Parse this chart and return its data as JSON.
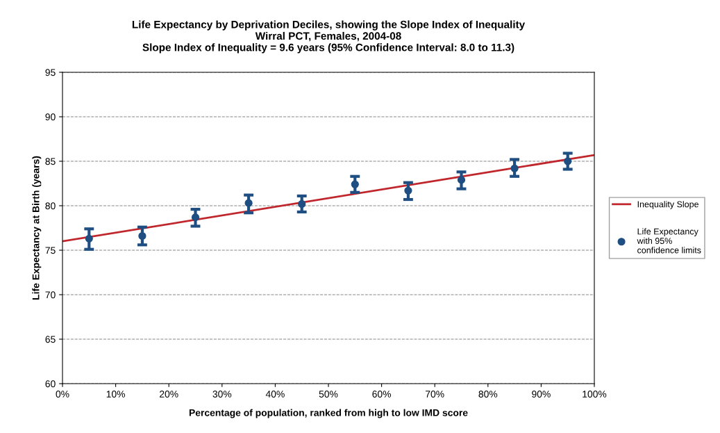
{
  "chart_data": {
    "type": "scatter",
    "title": "Life Expectancy by Deprivation Deciles, showing the Slope Index of Inequality\nWirral PCT, Females, 2004-08\nSlope Index of Inequality = 9.6 years (95% Confidence Interval: 8.0 to 11.3)",
    "xlabel": "Percentage of population, ranked from high to low IMD score",
    "ylabel": "Life Expectancy at Birth (years)",
    "series": [
      {
        "type": "line",
        "name": "Inequality Slope",
        "color": "#c0272d",
        "x": [
          0,
          100
        ],
        "values": [
          76.0,
          85.7
        ],
        "marker": "none"
      },
      {
        "name": "Life Expectancy\nwith 95%\nconfidence limits",
        "color": "#1f4e82",
        "marker": "circle",
        "x": [
          5,
          15,
          25,
          35,
          45,
          55,
          65,
          75,
          85,
          95
        ],
        "values": [
          76.3,
          76.6,
          78.7,
          80.3,
          80.2,
          82.4,
          81.7,
          82.9,
          84.2,
          85.0
        ],
        "errors": [
          [
            75.1,
            77.4
          ],
          [
            75.6,
            77.6
          ],
          [
            77.7,
            79.6
          ],
          [
            79.2,
            81.2
          ],
          [
            79.3,
            81.1
          ],
          [
            81.5,
            83.3
          ],
          [
            80.7,
            82.6
          ],
          [
            81.9,
            83.8
          ],
          [
            83.3,
            85.2
          ],
          [
            84.1,
            85.9
          ]
        ]
      }
    ],
    "xlim": [
      0,
      100
    ],
    "xticks": [
      {
        "value": 0,
        "label": "0%"
      },
      {
        "value": 10,
        "label": "10%"
      },
      {
        "value": 20,
        "label": "20%"
      },
      {
        "value": 30,
        "label": "30%"
      },
      {
        "value": 40,
        "label": "40%"
      },
      {
        "value": 50,
        "label": "50%"
      },
      {
        "value": 60,
        "label": "60%"
      },
      {
        "value": 70,
        "label": "70%"
      },
      {
        "value": 80,
        "label": "80%"
      },
      {
        "value": 90,
        "label": "90%"
      },
      {
        "value": 100,
        "label": "100%"
      }
    ],
    "ylim": [
      60,
      95
    ],
    "yticks": [
      60,
      65,
      70,
      75,
      80,
      85,
      90,
      95
    ],
    "grid": "y",
    "legend": "right"
  }
}
